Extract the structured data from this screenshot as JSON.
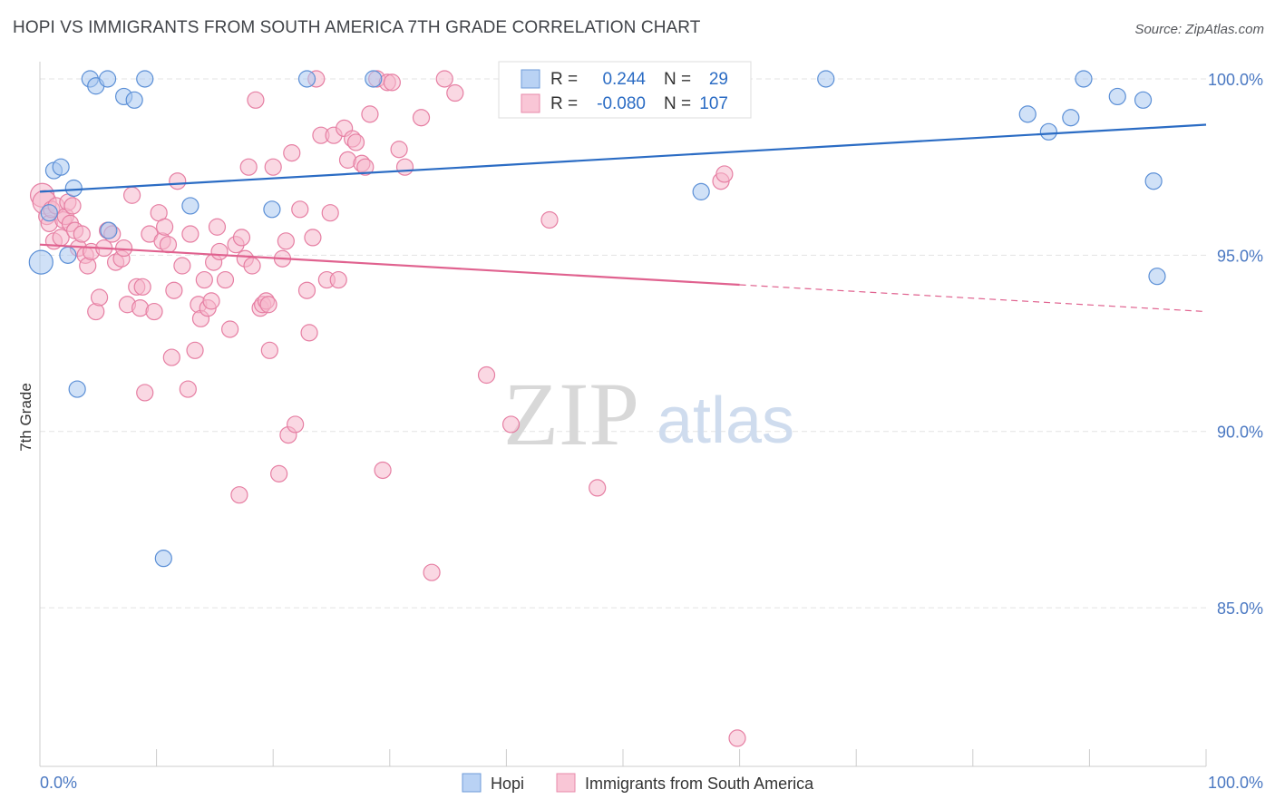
{
  "title": "HOPI VS IMMIGRANTS FROM SOUTH AMERICA 7TH GRADE CORRELATION CHART",
  "source": "Source: ZipAtlas.com",
  "watermark": {
    "zip": "ZIP",
    "atlas": "atlas"
  },
  "colors": {
    "hopi_fill": "#a9c8f0",
    "hopi_stroke": "#5b8fd6",
    "hopi_line": "#2b6cc4",
    "sa_fill": "#f5b8cc",
    "sa_stroke": "#e67fa3",
    "sa_line": "#e0628f",
    "grid": "#e3e3e3",
    "axis_label": "#4a78c2"
  },
  "legend": {
    "r_label": "R =",
    "n_label": "N =",
    "rows": [
      {
        "r": "0.244",
        "n": "29"
      },
      {
        "r": "-0.080",
        "n": "107"
      }
    ]
  },
  "chart_data": {
    "type": "scatter",
    "xlabel": "",
    "ylabel": "7th Grade",
    "xlim": [
      0,
      100
    ],
    "ylim": [
      80.5,
      100.9
    ],
    "x_tick_labels": [
      "0.0%",
      "100.0%"
    ],
    "y_ticks": [
      85,
      90,
      95,
      100
    ],
    "y_tick_labels": [
      "85.0%",
      "90.0%",
      "95.0%",
      "100.0%"
    ],
    "grid": true,
    "legend_position": "bottom",
    "series": [
      {
        "name": "Hopi",
        "r": 0.244,
        "n": 29,
        "trend": {
          "x0": 0,
          "y0": 96.8,
          "x1": 100,
          "y1": 98.7,
          "solid_until": 100
        },
        "points": [
          [
            0.1,
            94.8
          ],
          [
            1.2,
            97.4
          ],
          [
            1.8,
            97.5
          ],
          [
            2.4,
            95.0
          ],
          [
            2.9,
            96.9
          ],
          [
            3.2,
            91.2
          ],
          [
            4.3,
            100.0
          ],
          [
            4.8,
            99.8
          ],
          [
            5.8,
            100.0
          ],
          [
            7.2,
            99.5
          ],
          [
            8.1,
            99.4
          ],
          [
            9.0,
            100.0
          ],
          [
            10.6,
            86.4
          ],
          [
            12.9,
            96.4
          ],
          [
            19.9,
            96.3
          ],
          [
            22.9,
            100.0
          ],
          [
            28.6,
            100.0
          ],
          [
            56.7,
            96.8
          ],
          [
            67.4,
            100.0
          ],
          [
            84.7,
            99.0
          ],
          [
            86.5,
            98.5
          ],
          [
            88.4,
            98.9
          ],
          [
            89.5,
            100.0
          ],
          [
            92.4,
            99.5
          ],
          [
            94.6,
            99.4
          ],
          [
            95.5,
            97.1
          ],
          [
            95.8,
            94.4
          ],
          [
            0.8,
            96.2
          ],
          [
            5.9,
            95.7
          ]
        ]
      },
      {
        "name": "Immigrants from South America",
        "r": -0.08,
        "n": 107,
        "trend": {
          "x0": 0,
          "y0": 95.3,
          "x1": 100,
          "y1": 93.4,
          "solid_until": 60
        },
        "points": [
          [
            0.2,
            96.7
          ],
          [
            0.4,
            96.5
          ],
          [
            0.6,
            96.1
          ],
          [
            0.8,
            95.9
          ],
          [
            1.0,
            96.3
          ],
          [
            1.2,
            95.4
          ],
          [
            1.4,
            96.4
          ],
          [
            1.8,
            95.5
          ],
          [
            2.0,
            96.0
          ],
          [
            2.2,
            96.1
          ],
          [
            2.4,
            96.5
          ],
          [
            2.6,
            95.9
          ],
          [
            2.8,
            96.4
          ],
          [
            3.0,
            95.7
          ],
          [
            3.3,
            95.2
          ],
          [
            3.6,
            95.6
          ],
          [
            3.9,
            95.0
          ],
          [
            4.1,
            94.7
          ],
          [
            4.4,
            95.1
          ],
          [
            4.8,
            93.4
          ],
          [
            5.1,
            93.8
          ],
          [
            5.5,
            95.2
          ],
          [
            5.8,
            95.7
          ],
          [
            6.2,
            95.6
          ],
          [
            6.5,
            94.8
          ],
          [
            7.0,
            94.9
          ],
          [
            7.2,
            95.2
          ],
          [
            7.5,
            93.6
          ],
          [
            7.9,
            96.7
          ],
          [
            8.3,
            94.1
          ],
          [
            8.6,
            93.5
          ],
          [
            8.8,
            94.1
          ],
          [
            9.0,
            91.1
          ],
          [
            9.4,
            95.6
          ],
          [
            9.8,
            93.4
          ],
          [
            10.2,
            96.2
          ],
          [
            10.5,
            95.4
          ],
          [
            10.7,
            95.8
          ],
          [
            11.0,
            95.3
          ],
          [
            11.3,
            92.1
          ],
          [
            11.5,
            94.0
          ],
          [
            11.8,
            97.1
          ],
          [
            12.2,
            94.7
          ],
          [
            12.7,
            91.2
          ],
          [
            12.9,
            95.6
          ],
          [
            13.3,
            92.3
          ],
          [
            13.6,
            93.6
          ],
          [
            13.8,
            93.2
          ],
          [
            14.1,
            94.3
          ],
          [
            14.4,
            93.5
          ],
          [
            14.7,
            93.7
          ],
          [
            14.9,
            94.8
          ],
          [
            15.2,
            95.8
          ],
          [
            15.4,
            95.1
          ],
          [
            15.9,
            94.3
          ],
          [
            16.3,
            92.9
          ],
          [
            16.8,
            95.3
          ],
          [
            17.1,
            88.2
          ],
          [
            17.3,
            95.5
          ],
          [
            17.6,
            94.9
          ],
          [
            17.9,
            97.5
          ],
          [
            18.2,
            94.7
          ],
          [
            18.5,
            99.4
          ],
          [
            18.9,
            93.5
          ],
          [
            19.1,
            93.6
          ],
          [
            19.4,
            93.7
          ],
          [
            19.6,
            93.6
          ],
          [
            19.7,
            92.3
          ],
          [
            20.0,
            97.5
          ],
          [
            20.5,
            88.8
          ],
          [
            20.8,
            94.9
          ],
          [
            21.1,
            95.4
          ],
          [
            21.3,
            89.9
          ],
          [
            21.6,
            97.9
          ],
          [
            21.9,
            90.2
          ],
          [
            22.3,
            96.3
          ],
          [
            22.9,
            94.0
          ],
          [
            23.1,
            92.8
          ],
          [
            23.4,
            95.5
          ],
          [
            23.7,
            100.0
          ],
          [
            24.1,
            98.4
          ],
          [
            24.6,
            94.3
          ],
          [
            24.9,
            96.2
          ],
          [
            25.2,
            98.4
          ],
          [
            25.6,
            94.3
          ],
          [
            26.1,
            98.6
          ],
          [
            26.4,
            97.7
          ],
          [
            26.8,
            98.3
          ],
          [
            27.1,
            98.2
          ],
          [
            27.6,
            97.6
          ],
          [
            27.9,
            97.5
          ],
          [
            28.3,
            99.0
          ],
          [
            28.9,
            100.0
          ],
          [
            29.4,
            88.9
          ],
          [
            29.8,
            99.9
          ],
          [
            30.2,
            99.9
          ],
          [
            30.8,
            98.0
          ],
          [
            31.3,
            97.5
          ],
          [
            32.7,
            98.9
          ],
          [
            33.6,
            86.0
          ],
          [
            34.7,
            100.0
          ],
          [
            35.6,
            99.6
          ],
          [
            38.3,
            91.6
          ],
          [
            40.4,
            90.2
          ],
          [
            43.7,
            96.0
          ],
          [
            47.8,
            88.4
          ],
          [
            59.8,
            81.3
          ],
          [
            58.4,
            97.1
          ],
          [
            58.7,
            97.3
          ]
        ]
      }
    ]
  }
}
